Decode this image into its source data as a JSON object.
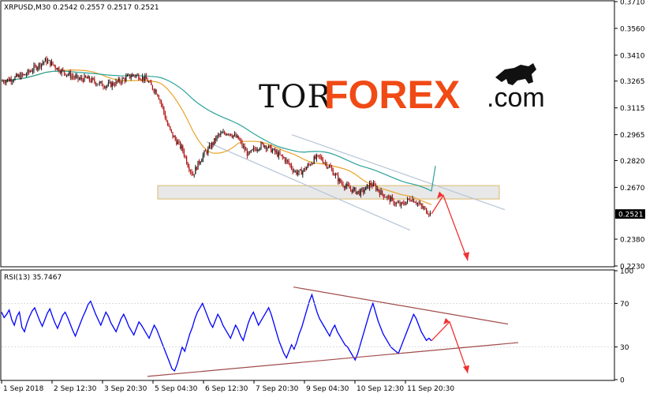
{
  "header": {
    "symbol_info": "XRPUSD,M30  0.2542 0.2557 0.2517 0.2521",
    "rsi_info": "RSI(13) 35.7467"
  },
  "logo": {
    "part1": "TOR",
    "part2": "FOREX",
    "part3": ".com"
  },
  "colors": {
    "candle_up": "#1a1a1a",
    "candle_down": "#b01010",
    "ma_fast": "#e8a32a",
    "ma_slow": "#2aa39a",
    "channel": "#b6c4d8",
    "zone_fill": "#e6e6e6",
    "zone_border": "#d8b25a",
    "arrow": "#f03232",
    "rsi_line": "#0000ff",
    "rsi_trend": "#a04a4a",
    "current_label_bg": "#000000"
  },
  "price_axis": {
    "ticks": [
      "0.3710",
      "0.3560",
      "0.3410",
      "0.3265",
      "0.3115",
      "0.2965",
      "0.2820",
      "0.2670",
      "0.2380",
      "0.2230"
    ],
    "current_price": "0.2521"
  },
  "rsi_axis": {
    "ticks": [
      "100",
      "70",
      "30",
      "0"
    ]
  },
  "time_axis": {
    "labels": [
      "1 Sep 2018",
      "2 Sep 12:30",
      "3 Sep 20:30",
      "5 Sep 04:30",
      "6 Sep 12:30",
      "7 Sep 20:30",
      "9 Sep 04:30",
      "10 Sep 12:30",
      "11 Sep 20:30"
    ]
  },
  "chart_data": [
    {
      "type": "candlestick",
      "title": "XRPUSD,M30",
      "ohlc_last": {
        "open": 0.2542,
        "high": 0.2557,
        "low": 0.2517,
        "close": 0.2521
      },
      "ylim": [
        0.223,
        0.371
      ],
      "x_labels": [
        "1 Sep 2018",
        "2 Sep 12:30",
        "3 Sep 20:30",
        "5 Sep 04:30",
        "6 Sep 12:30",
        "7 Sep 20:30",
        "9 Sep 04:30",
        "10 Sep 12:30",
        "11 Sep 20:30"
      ],
      "close_path": [
        [
          0,
          0.3265
        ],
        [
          5,
          0.3275
        ],
        [
          10,
          0.329
        ],
        [
          14,
          0.33
        ],
        [
          18,
          0.333
        ],
        [
          22,
          0.3355
        ],
        [
          26,
          0.338
        ],
        [
          30,
          0.336
        ],
        [
          34,
          0.333
        ],
        [
          38,
          0.331
        ],
        [
          42,
          0.329
        ],
        [
          46,
          0.3275
        ],
        [
          50,
          0.328
        ],
        [
          54,
          0.3265
        ],
        [
          58,
          0.325
        ],
        [
          62,
          0.324
        ],
        [
          66,
          0.325
        ],
        [
          70,
          0.3265
        ],
        [
          74,
          0.3285
        ],
        [
          78,
          0.33
        ],
        [
          82,
          0.329
        ],
        [
          86,
          0.327
        ],
        [
          88,
          0.324
        ],
        [
          92,
          0.32
        ],
        [
          95,
          0.312
        ],
        [
          98,
          0.302
        ],
        [
          101,
          0.296
        ],
        [
          104,
          0.292
        ],
        [
          107,
          0.288
        ],
        [
          110,
          0.28
        ],
        [
          113,
          0.274
        ],
        [
          116,
          0.28
        ],
        [
          119,
          0.285
        ],
        [
          122,
          0.288
        ],
        [
          125,
          0.292
        ],
        [
          128,
          0.296
        ],
        [
          131,
          0.297
        ],
        [
          134,
          0.298
        ],
        [
          137,
          0.296
        ],
        [
          140,
          0.294
        ],
        [
          143,
          0.289
        ],
        [
          146,
          0.285
        ],
        [
          149,
          0.288
        ],
        [
          152,
          0.29
        ],
        [
          155,
          0.291
        ],
        [
          158,
          0.289
        ],
        [
          161,
          0.287
        ],
        [
          164,
          0.285
        ],
        [
          167,
          0.283
        ],
        [
          170,
          0.28
        ],
        [
          173,
          0.276
        ],
        [
          176,
          0.275
        ],
        [
          179,
          0.277
        ],
        [
          182,
          0.28
        ],
        [
          185,
          0.283
        ],
        [
          188,
          0.284
        ],
        [
          191,
          0.281
        ],
        [
          194,
          0.278
        ],
        [
          197,
          0.274
        ],
        [
          200,
          0.27
        ],
        [
          203,
          0.268
        ],
        [
          206,
          0.266
        ],
        [
          209,
          0.265
        ],
        [
          212,
          0.264
        ],
        [
          215,
          0.266
        ],
        [
          218,
          0.269
        ],
        [
          221,
          0.267
        ],
        [
          224,
          0.264
        ],
        [
          227,
          0.262
        ],
        [
          230,
          0.26
        ],
        [
          233,
          0.258
        ],
        [
          236,
          0.257
        ],
        [
          239,
          0.259
        ],
        [
          242,
          0.261
        ],
        [
          245,
          0.259
        ],
        [
          248,
          0.256
        ],
        [
          251,
          0.254
        ],
        [
          254,
          0.2521
        ]
      ],
      "series": [
        {
          "name": "",
          "kind": "ma_fast"
        },
        {
          "name": "",
          "kind": "ma_slow"
        }
      ],
      "support_zone": {
        "low": 0.2605,
        "high": 0.268
      },
      "forecast": {
        "up_to": 0.2625,
        "down_to": 0.226
      }
    },
    {
      "type": "line",
      "title": "RSI(13)",
      "current": 35.7467,
      "ylim": [
        0,
        100
      ],
      "levels": [
        70,
        30
      ],
      "values": [
        62,
        57,
        60,
        64,
        55,
        50,
        58,
        62,
        48,
        44,
        52,
        58,
        63,
        66,
        60,
        54,
        49,
        55,
        61,
        65,
        58,
        52,
        47,
        53,
        59,
        62,
        57,
        51,
        45,
        40,
        46,
        52,
        58,
        63,
        69,
        72,
        66,
        60,
        55,
        50,
        56,
        62,
        58,
        52,
        48,
        44,
        50,
        56,
        60,
        55,
        49,
        45,
        41,
        47,
        53,
        50,
        46,
        42,
        38,
        44,
        50,
        46,
        40,
        34,
        28,
        22,
        16,
        10,
        8,
        14,
        22,
        30,
        26,
        34,
        42,
        48,
        56,
        62,
        66,
        70,
        64,
        58,
        52,
        48,
        54,
        60,
        56,
        50,
        46,
        42,
        38,
        44,
        50,
        46,
        40,
        36,
        44,
        52,
        58,
        62,
        56,
        50,
        54,
        58,
        62,
        66,
        60,
        52,
        44,
        36,
        30,
        24,
        20,
        26,
        32,
        28,
        34,
        42,
        48,
        56,
        64,
        72,
        78,
        70,
        62,
        56,
        52,
        48,
        44,
        40,
        46,
        50,
        44,
        40,
        36,
        32,
        30,
        26,
        22,
        18,
        24,
        32,
        40,
        48,
        56,
        64,
        70,
        62,
        54,
        48,
        42,
        38,
        34,
        30,
        28,
        26,
        24,
        30,
        36,
        42,
        48,
        54,
        60,
        56,
        50,
        44,
        40,
        36,
        38,
        35.7
      ],
      "trend_upper": [
        85,
        51
      ],
      "trend_lower": [
        3,
        34
      ]
    }
  ]
}
